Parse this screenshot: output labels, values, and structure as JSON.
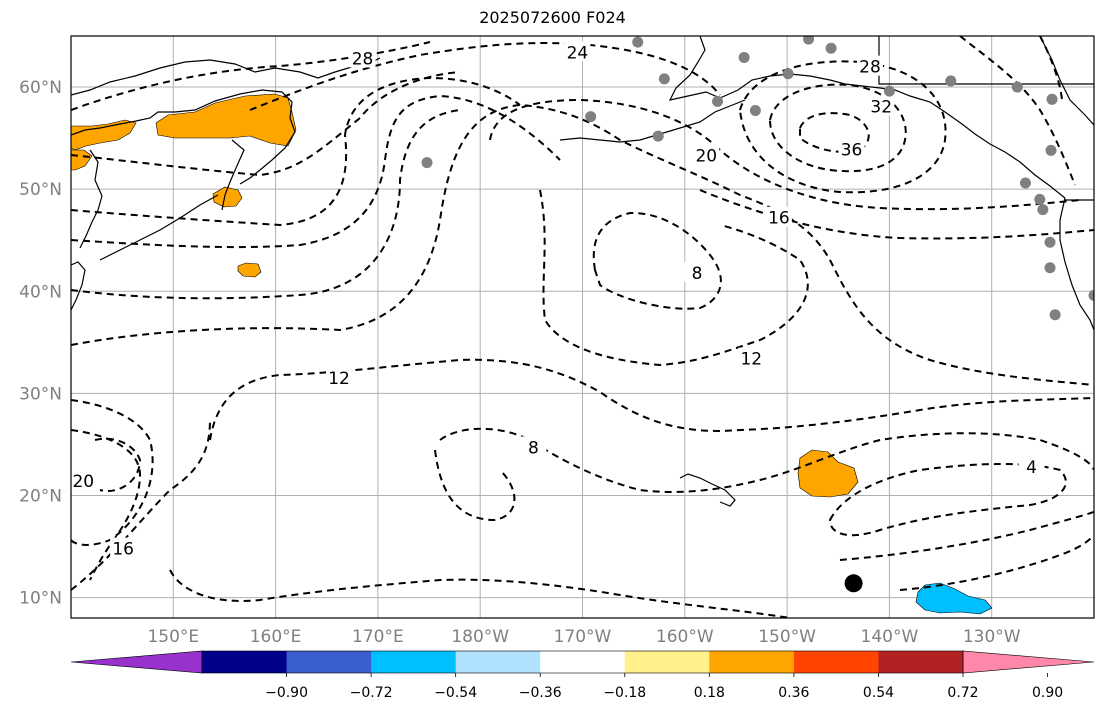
{
  "title": "2025072600 F024",
  "lat_ticks": [
    {
      "value": 60,
      "label": "60°N"
    },
    {
      "value": 50,
      "label": "50°N"
    },
    {
      "value": 40,
      "label": "40°N"
    },
    {
      "value": 30,
      "label": "30°N"
    },
    {
      "value": 20,
      "label": "20°N"
    },
    {
      "value": 10,
      "label": "10°N"
    }
  ],
  "lon_ticks": [
    {
      "value": 150,
      "label": "150°E"
    },
    {
      "value": 160,
      "label": "160°E"
    },
    {
      "value": 170,
      "label": "170°E"
    },
    {
      "value": 180,
      "label": "180°W"
    },
    {
      "value": 190,
      "label": "170°W"
    },
    {
      "value": 200,
      "label": "160°W"
    },
    {
      "value": 210,
      "label": "150°W"
    },
    {
      "value": 220,
      "label": "140°W"
    },
    {
      "value": 230,
      "label": "130°W"
    }
  ],
  "extent": {
    "lon_min": 140,
    "lon_max": 240,
    "lat_min": 8,
    "lat_max": 65
  },
  "contour_labels": [
    {
      "text": "28",
      "lon": 168.5,
      "lat": 62.8
    },
    {
      "text": "24",
      "lon": 189.5,
      "lat": 63.4
    },
    {
      "text": "28",
      "lon": 218.1,
      "lat": 62
    },
    {
      "text": "32",
      "lon": 219.2,
      "lat": 58.1
    },
    {
      "text": "36",
      "lon": 216.3,
      "lat": 53.9
    },
    {
      "text": "20",
      "lon": 202.1,
      "lat": 53.3
    },
    {
      "text": "16",
      "lon": 209.2,
      "lat": 47.2
    },
    {
      "text": "8",
      "lon": 201.2,
      "lat": 41.8
    },
    {
      "text": "12",
      "lon": 206.5,
      "lat": 33.4
    },
    {
      "text": "12",
      "lon": 166.2,
      "lat": 31.5
    },
    {
      "text": "8",
      "lon": 185.2,
      "lat": 24.7
    },
    {
      "text": "4",
      "lon": 233.9,
      "lat": 22.8
    },
    {
      "text": "20",
      "lon": 141.2,
      "lat": 21.4
    },
    {
      "text": "16",
      "lon": 145.1,
      "lat": 14.8
    }
  ],
  "station_dots": [
    {
      "lon": 195.4,
      "lat": 64.4
    },
    {
      "lon": 212.1,
      "lat": 64.7
    },
    {
      "lon": 214.3,
      "lat": 63.8
    },
    {
      "lon": 205.8,
      "lat": 62.9
    },
    {
      "lon": 210.1,
      "lat": 61.3
    },
    {
      "lon": 198.0,
      "lat": 60.8
    },
    {
      "lon": 226.0,
      "lat": 60.6
    },
    {
      "lon": 232.5,
      "lat": 60.0
    },
    {
      "lon": 235.9,
      "lat": 58.8
    },
    {
      "lon": 203.2,
      "lat": 58.6
    },
    {
      "lon": 206.9,
      "lat": 57.7
    },
    {
      "lon": 190.8,
      "lat": 57.1
    },
    {
      "lon": 197.4,
      "lat": 55.2
    },
    {
      "lon": 235.8,
      "lat": 53.8
    },
    {
      "lon": 174.8,
      "lat": 52.6
    },
    {
      "lon": 233.3,
      "lat": 50.6
    },
    {
      "lon": 234.7,
      "lat": 49.0
    },
    {
      "lon": 235.0,
      "lat": 48.0
    },
    {
      "lon": 235.7,
      "lat": 44.8
    },
    {
      "lon": 235.7,
      "lat": 42.3
    },
    {
      "lon": 236.2,
      "lat": 37.7
    },
    {
      "lon": 240.0,
      "lat": 39.6
    },
    {
      "lon": 220.0,
      "lat": 59.6
    }
  ],
  "marker_dot": {
    "lon": 216.5,
    "lat": 11.4
  },
  "colorbar": {
    "colors": [
      "#9932cc",
      "#00008b",
      "#3a5fcd",
      "#00bfff",
      "#b0e2ff",
      "#ffffff",
      "#fff08c",
      "#ffa500",
      "#ff4500",
      "#b22222",
      "#ff88aa"
    ],
    "tick_labels": [
      "−0.90",
      "−0.72",
      "−0.54",
      "−0.36",
      "−0.18",
      "0.18",
      "0.36",
      "0.54",
      "0.72",
      "0.90"
    ]
  },
  "fill_colors": {
    "positive": "#ffa500",
    "negative": "#00bfff"
  }
}
